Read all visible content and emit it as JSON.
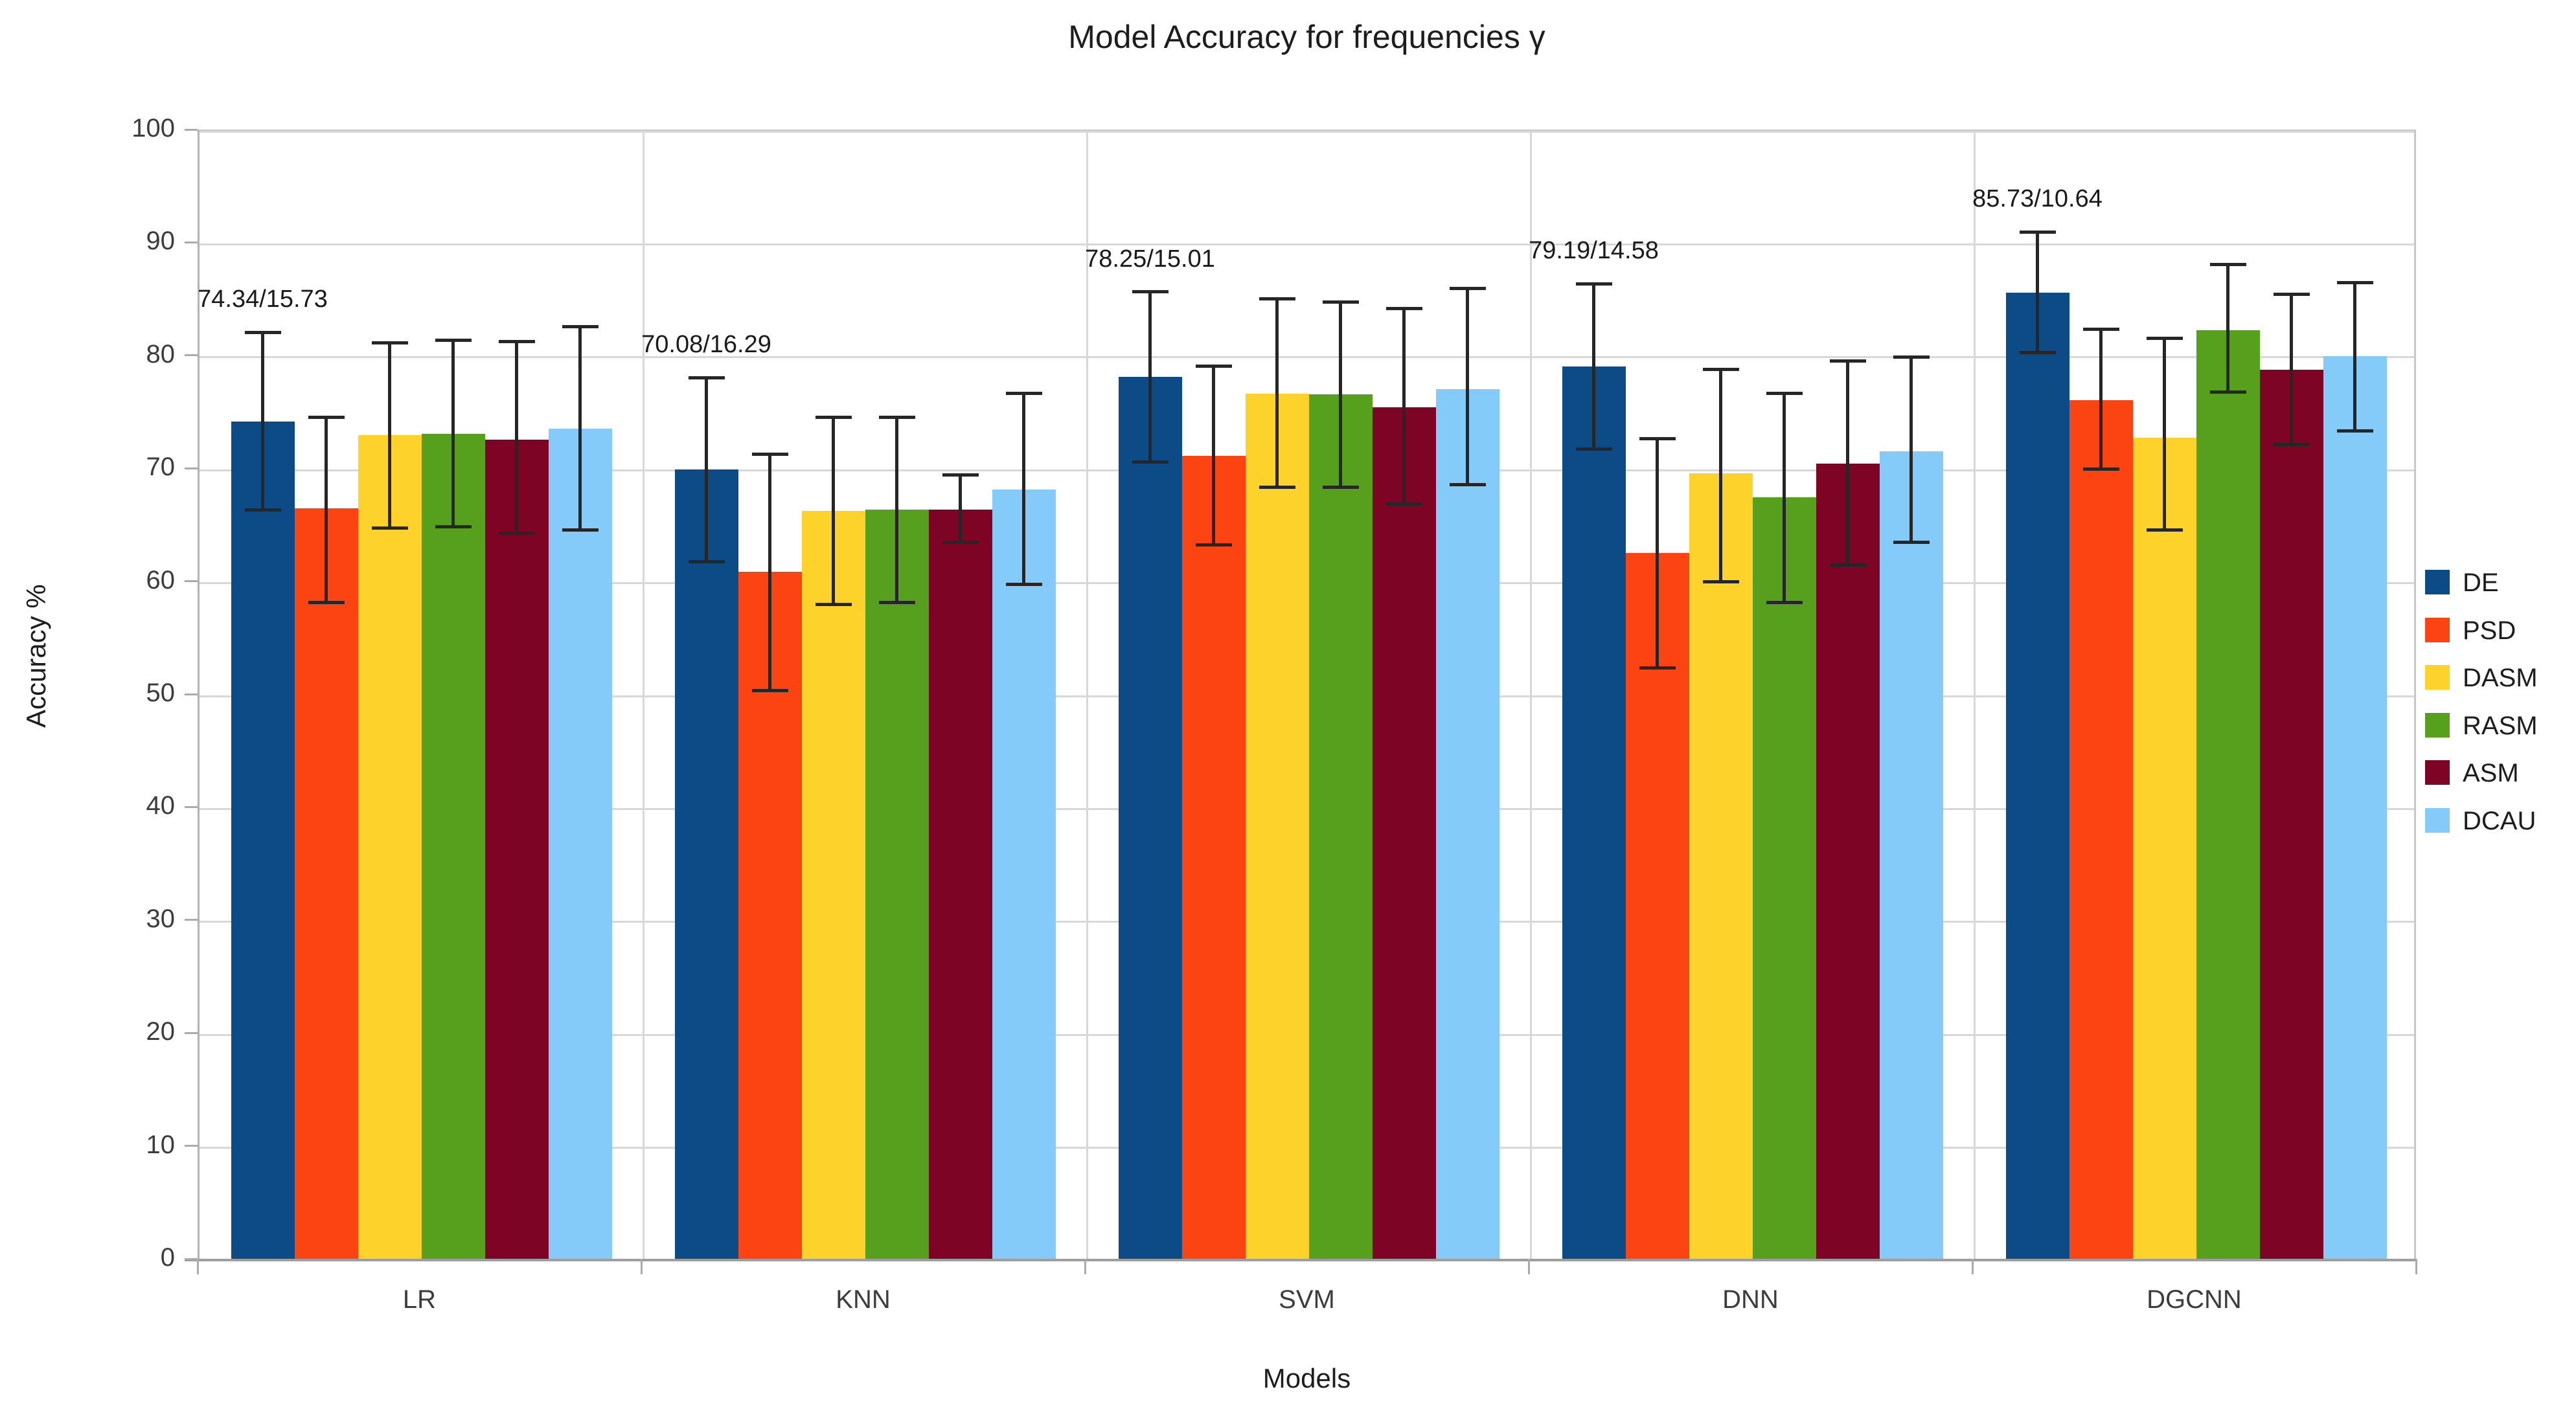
{
  "title": "Model Accuracy for frequencies γ",
  "x_axis_title": "Models",
  "y_axis_title": "Accuracy %",
  "legend": [
    "DE",
    "PSD",
    "DASM",
    "RASM",
    "ASM",
    "DCAU"
  ],
  "chart_data": {
    "type": "bar",
    "categories": [
      "LR",
      "KNN",
      "SVM",
      "DNN",
      "DGCNN"
    ],
    "ylim": [
      0,
      100
    ],
    "y_tick_step": 10,
    "grid": true,
    "legend_position": "right",
    "error_bars": "mean ± std/2",
    "series": [
      {
        "name": "DE",
        "color": "#0d4b87",
        "values": [
          74.34,
          70.08,
          78.25,
          79.19,
          85.73
        ],
        "err_low": [
          66.5,
          61.9,
          70.7,
          71.9,
          80.4
        ],
        "err_high": [
          82.2,
          78.2,
          85.8,
          86.5,
          91.1
        ]
      },
      {
        "name": "PSD",
        "color": "#fc4412",
        "values": [
          66.6,
          61.0,
          71.3,
          62.7,
          76.2
        ],
        "err_low": [
          58.3,
          50.5,
          63.4,
          52.5,
          70.1
        ],
        "err_high": [
          74.7,
          71.4,
          79.2,
          72.8,
          82.5
        ]
      },
      {
        "name": "DASM",
        "color": "#fdd22a",
        "values": [
          73.1,
          66.4,
          76.8,
          69.7,
          72.9
        ],
        "err_low": [
          64.9,
          58.1,
          68.5,
          60.1,
          64.7
        ],
        "err_high": [
          81.3,
          74.7,
          85.2,
          78.9,
          81.7
        ]
      },
      {
        "name": "RASM",
        "color": "#56a01e",
        "values": [
          73.2,
          66.5,
          76.7,
          67.6,
          82.4
        ],
        "err_low": [
          65.0,
          58.3,
          68.5,
          58.3,
          76.9
        ],
        "err_high": [
          81.5,
          74.7,
          84.9,
          76.8,
          88.2
        ]
      },
      {
        "name": "ASM",
        "color": "#7d0425",
        "values": [
          72.7,
          66.5,
          75.6,
          70.6,
          78.9
        ],
        "err_low": [
          64.4,
          63.6,
          67.0,
          61.6,
          72.3
        ],
        "err_high": [
          81.4,
          69.6,
          84.3,
          79.7,
          85.6
        ]
      },
      {
        "name": "DCAU",
        "color": "#85cbfa",
        "values": [
          73.7,
          68.3,
          77.2,
          71.7,
          80.1
        ],
        "err_low": [
          64.7,
          59.9,
          68.7,
          63.6,
          73.5
        ],
        "err_high": [
          82.7,
          76.8,
          86.1,
          80.0,
          86.6
        ]
      }
    ],
    "annotations": [
      "74.34/15.73",
      "70.08/16.29",
      "78.25/15.01",
      "79.19/14.58",
      "85.73/10.64"
    ],
    "y_tick_labels": [
      "0",
      "10",
      "20",
      "30",
      "40",
      "50",
      "60",
      "70",
      "80",
      "90",
      "100"
    ]
  },
  "colors": {
    "gridline": "#d8d8d8",
    "axis_line": "#9e9e9e",
    "error_bar": "#262626",
    "text": "#1d1d1d"
  }
}
